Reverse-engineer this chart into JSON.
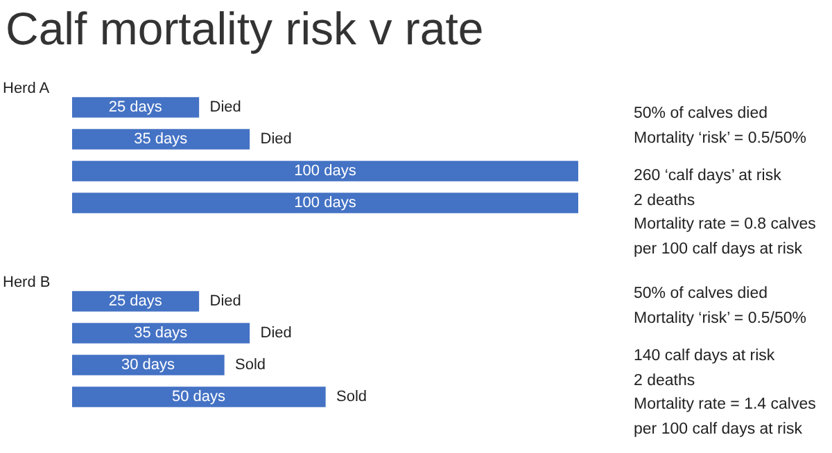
{
  "chart_data": [
    {
      "type": "bar",
      "orientation": "horizontal",
      "title": "Calf mortality risk v rate",
      "ylabel": "Herd A",
      "categories": [
        null,
        null,
        null,
        null
      ],
      "values": [
        25,
        35,
        100,
        100
      ],
      "color": "#4472c4",
      "value_labels": [
        "25 days",
        "35 days",
        "100 days",
        "100 days"
      ],
      "tick_labels": false,
      "annotations": [
        "Died",
        "Died",
        "50% of calves died\nMortality ‘risk’ = 0.5/50%",
        "260 ‘calf days’ at risk\n2 deaths\nMortality rate = 0.8 calves\nper 100 calf days at risk"
      ]
    },
    {
      "type": "bar",
      "orientation": "horizontal",
      "ylabel": "Herd B",
      "categories": [
        null,
        null,
        null,
        null
      ],
      "values": [
        25,
        35,
        30,
        50
      ],
      "color": "#4472c4",
      "value_labels": [
        "25 days",
        "35 days",
        "30 days",
        "50 days"
      ],
      "tick_labels": false,
      "annotations": [
        "Died",
        "Died",
        "Sold",
        "Sold",
        "50% of calves died\nMortality ‘risk’ = 0.5/50%",
        "140 calf days at risk\n2 deaths\nMortality rate = 1.4 calves\nper 100 calf days at risk"
      ]
    }
  ]
}
